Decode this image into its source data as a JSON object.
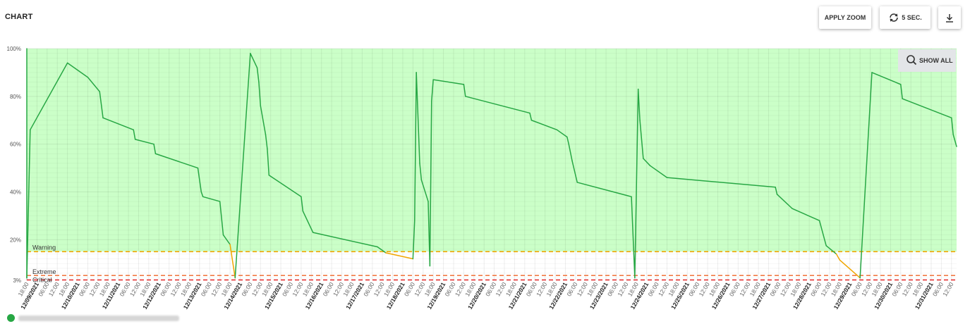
{
  "header": {
    "title": "CHART",
    "apply_zoom_label": "APPLY ZOOM",
    "refresh_label": "5 SEC.",
    "refresh_icon": "refresh-icon",
    "download_icon": "download-icon"
  },
  "show_all_label": "SHOW ALL",
  "legend": {
    "label": "",
    "color": "#27a744"
  },
  "colors": {
    "line_ok": "#27a744",
    "line_warning": "#f0a500",
    "fill": "#cbffc8",
    "warning": "#f0a500",
    "extreme": "#f07a45",
    "critical": "#e02424"
  },
  "chart_data": {
    "type": "line",
    "y_unit": "%",
    "ylim": [
      3,
      100
    ],
    "yticks": [
      "3%",
      "20%",
      "40%",
      "60%",
      "80%",
      "100%"
    ],
    "thresholds": [
      {
        "name": "Warning",
        "value": 15
      },
      {
        "name": "Extreme",
        "value": 5
      },
      {
        "name": "Critical",
        "value": 3
      }
    ],
    "x_start": "12/08/2021 18:00",
    "x_end": "12/31/2021 15:00",
    "x_ticks": [
      {
        "t": "12/08/2021 18:00",
        "label": "18:00",
        "bold": false
      },
      {
        "t": "12/09/2021 00:00",
        "label": "12/09/2021",
        "bold": true
      },
      {
        "t": "12/09/2021 06:00",
        "label": "06:00",
        "bold": false
      },
      {
        "t": "12/09/2021 12:00",
        "label": "12:00",
        "bold": false
      },
      {
        "t": "12/09/2021 18:00",
        "label": "18:00",
        "bold": false
      },
      {
        "t": "12/10/2021 00:00",
        "label": "12/10/2021",
        "bold": true
      },
      {
        "t": "12/10/2021 06:00",
        "label": "06:00",
        "bold": false
      },
      {
        "t": "12/10/2021 12:00",
        "label": "12:00",
        "bold": false
      },
      {
        "t": "12/10/2021 18:00",
        "label": "18:00",
        "bold": false
      },
      {
        "t": "12/11/2021 00:00",
        "label": "12/11/2021",
        "bold": true
      },
      {
        "t": "12/11/2021 06:00",
        "label": "06:00",
        "bold": false
      },
      {
        "t": "12/11/2021 12:00",
        "label": "12:00",
        "bold": false
      },
      {
        "t": "12/11/2021 18:00",
        "label": "18:00",
        "bold": false
      },
      {
        "t": "12/12/2021 00:00",
        "label": "12/12/2021",
        "bold": true
      },
      {
        "t": "12/12/2021 06:00",
        "label": "06:00",
        "bold": false
      },
      {
        "t": "12/12/2021 12:00",
        "label": "12:00",
        "bold": false
      },
      {
        "t": "12/12/2021 18:00",
        "label": "18:00",
        "bold": false
      },
      {
        "t": "12/13/2021 00:00",
        "label": "12/13/2021",
        "bold": true
      },
      {
        "t": "12/13/2021 06:00",
        "label": "06:00",
        "bold": false
      },
      {
        "t": "12/13/2021 12:00",
        "label": "12:00",
        "bold": false
      },
      {
        "t": "12/13/2021 18:00",
        "label": "18:00",
        "bold": false
      },
      {
        "t": "12/14/2021 00:00",
        "label": "12/14/2021",
        "bold": true
      },
      {
        "t": "12/14/2021 06:00",
        "label": "06:00",
        "bold": false
      },
      {
        "t": "12/14/2021 12:00",
        "label": "12:00",
        "bold": false
      },
      {
        "t": "12/14/2021 18:00",
        "label": "18:00",
        "bold": false
      },
      {
        "t": "12/15/2021 00:00",
        "label": "12/15/2021",
        "bold": true
      },
      {
        "t": "12/15/2021 06:00",
        "label": "06:00",
        "bold": false
      },
      {
        "t": "12/15/2021 12:00",
        "label": "12:00",
        "bold": false
      },
      {
        "t": "12/15/2021 18:00",
        "label": "18:00",
        "bold": false
      },
      {
        "t": "12/16/2021 00:00",
        "label": "12/16/2021",
        "bold": true
      },
      {
        "t": "12/16/2021 06:00",
        "label": "06:00",
        "bold": false
      },
      {
        "t": "12/16/2021 12:00",
        "label": "12:00",
        "bold": false
      },
      {
        "t": "12/16/2021 18:00",
        "label": "18:00",
        "bold": false
      },
      {
        "t": "12/17/2021 00:00",
        "label": "12/17/2021",
        "bold": true
      },
      {
        "t": "12/17/2021 06:00",
        "label": "06:00",
        "bold": false
      },
      {
        "t": "12/17/2021 12:00",
        "label": "12:00",
        "bold": false
      },
      {
        "t": "12/17/2021 18:00",
        "label": "18:00",
        "bold": false
      },
      {
        "t": "12/18/2021 00:00",
        "label": "12/18/2021",
        "bold": true
      },
      {
        "t": "12/18/2021 06:00",
        "label": "06:00",
        "bold": false
      },
      {
        "t": "12/18/2021 12:00",
        "label": "12:00",
        "bold": false
      },
      {
        "t": "12/18/2021 18:00",
        "label": "18:00",
        "bold": false
      },
      {
        "t": "12/19/2021 00:00",
        "label": "12/19/2021",
        "bold": true
      },
      {
        "t": "12/19/2021 06:00",
        "label": "06:00",
        "bold": false
      },
      {
        "t": "12/19/2021 12:00",
        "label": "12:00",
        "bold": false
      },
      {
        "t": "12/19/2021 18:00",
        "label": "18:00",
        "bold": false
      },
      {
        "t": "12/20/2021 00:00",
        "label": "12/20/2021",
        "bold": true
      },
      {
        "t": "12/20/2021 06:00",
        "label": "06:00",
        "bold": false
      },
      {
        "t": "12/20/2021 12:00",
        "label": "12:00",
        "bold": false
      },
      {
        "t": "12/20/2021 18:00",
        "label": "18:00",
        "bold": false
      },
      {
        "t": "12/21/2021 00:00",
        "label": "12/21/2021",
        "bold": true
      },
      {
        "t": "12/21/2021 06:00",
        "label": "06:00",
        "bold": false
      },
      {
        "t": "12/21/2021 12:00",
        "label": "12:00",
        "bold": false
      },
      {
        "t": "12/21/2021 18:00",
        "label": "18:00",
        "bold": false
      },
      {
        "t": "12/22/2021 00:00",
        "label": "12/22/2021",
        "bold": true
      },
      {
        "t": "12/22/2021 06:00",
        "label": "06:00",
        "bold": false
      },
      {
        "t": "12/22/2021 12:00",
        "label": "12:00",
        "bold": false
      },
      {
        "t": "12/22/2021 18:00",
        "label": "18:00",
        "bold": false
      },
      {
        "t": "12/23/2021 00:00",
        "label": "12/23/2021",
        "bold": true
      },
      {
        "t": "12/23/2021 06:00",
        "label": "06:00",
        "bold": false
      },
      {
        "t": "12/23/2021 12:00",
        "label": "12:00",
        "bold": false
      },
      {
        "t": "12/23/2021 18:00",
        "label": "18:00",
        "bold": false
      },
      {
        "t": "12/24/2021 00:00",
        "label": "12/24/2021",
        "bold": true
      },
      {
        "t": "12/24/2021 06:00",
        "label": "06:00",
        "bold": false
      },
      {
        "t": "12/24/2021 12:00",
        "label": "12:00",
        "bold": false
      },
      {
        "t": "12/24/2021 18:00",
        "label": "18:00",
        "bold": false
      },
      {
        "t": "12/25/2021 00:00",
        "label": "12/25/2021",
        "bold": true
      },
      {
        "t": "12/25/2021 06:00",
        "label": "06:00",
        "bold": false
      },
      {
        "t": "12/25/2021 12:00",
        "label": "12:00",
        "bold": false
      },
      {
        "t": "12/25/2021 18:00",
        "label": "18:00",
        "bold": false
      },
      {
        "t": "12/26/2021 00:00",
        "label": "12/26/2021",
        "bold": true
      },
      {
        "t": "12/26/2021 06:00",
        "label": "06:00",
        "bold": false
      },
      {
        "t": "12/26/2021 12:00",
        "label": "12:00",
        "bold": false
      },
      {
        "t": "12/26/2021 18:00",
        "label": "18:00",
        "bold": false
      },
      {
        "t": "12/27/2021 00:00",
        "label": "12/27/2021",
        "bold": true
      },
      {
        "t": "12/27/2021 06:00",
        "label": "06:00",
        "bold": false
      },
      {
        "t": "12/27/2021 12:00",
        "label": "12:00",
        "bold": false
      },
      {
        "t": "12/27/2021 18:00",
        "label": "18:00",
        "bold": false
      },
      {
        "t": "12/28/2021 00:00",
        "label": "12/28/2021",
        "bold": true
      },
      {
        "t": "12/28/2021 06:00",
        "label": "06:00",
        "bold": false
      },
      {
        "t": "12/28/2021 12:00",
        "label": "12:00",
        "bold": false
      },
      {
        "t": "12/28/2021 18:00",
        "label": "18:00",
        "bold": false
      },
      {
        "t": "12/29/2021 00:00",
        "label": "12/29/2021",
        "bold": true
      },
      {
        "t": "12/29/2021 06:00",
        "label": "06:00",
        "bold": false
      },
      {
        "t": "12/29/2021 12:00",
        "label": "12:00",
        "bold": false
      },
      {
        "t": "12/29/2021 18:00",
        "label": "18:00",
        "bold": false
      },
      {
        "t": "12/30/2021 00:00",
        "label": "12/30/2021",
        "bold": true
      },
      {
        "t": "12/30/2021 06:00",
        "label": "06:00",
        "bold": false
      },
      {
        "t": "12/30/2021 12:00",
        "label": "12:00",
        "bold": false
      },
      {
        "t": "12/30/2021 18:00",
        "label": "18:00",
        "bold": false
      },
      {
        "t": "12/31/2021 00:00",
        "label": "12/31/2021",
        "bold": true
      },
      {
        "t": "12/31/2021 06:00",
        "label": "06:00",
        "bold": false
      },
      {
        "t": "12/31/2021 12:00",
        "label": "12:00",
        "bold": false
      }
    ],
    "series": [
      {
        "points": [
          [
            "12/08/2021 18:00",
            100
          ],
          [
            "12/08/2021 18:00",
            4
          ],
          [
            "12/08/2021 20:00",
            66
          ],
          [
            "12/09/2021 18:00",
            94
          ],
          [
            "12/10/2021 06:00",
            88
          ],
          [
            "12/10/2021 13:00",
            82
          ],
          [
            "12/10/2021 15:00",
            71
          ],
          [
            "12/11/2021 09:00",
            66
          ],
          [
            "12/11/2021 10:00",
            62
          ],
          [
            "12/11/2021 21:00",
            60
          ],
          [
            "12/11/2021 22:00",
            56
          ],
          [
            "12/12/2021 23:00",
            50
          ],
          [
            "12/13/2021 01:00",
            40
          ],
          [
            "12/13/2021 02:00",
            38
          ],
          [
            "12/13/2021 12:00",
            36
          ],
          [
            "12/13/2021 14:00",
            22
          ],
          [
            "12/13/2021 18:00",
            18
          ],
          [
            "12/13/2021 21:00",
            4
          ],
          [
            "12/14/2021 06:00",
            98
          ],
          [
            "12/14/2021 10:00",
            92
          ],
          [
            "12/14/2021 11:00",
            86
          ],
          [
            "12/14/2021 12:00",
            76
          ],
          [
            "12/14/2021 15:00",
            64
          ],
          [
            "12/14/2021 16:00",
            58
          ],
          [
            "12/14/2021 17:00",
            47
          ],
          [
            "12/15/2021 12:00",
            38
          ],
          [
            "12/15/2021 13:00",
            32
          ],
          [
            "12/15/2021 19:00",
            23
          ],
          [
            "12/17/2021 09:00",
            17
          ],
          [
            "12/17/2021 14:00",
            14.5
          ],
          [
            "12/18/2021 06:00",
            12
          ],
          [
            "12/18/2021 07:00",
            28
          ],
          [
            "12/18/2021 08:00",
            90
          ],
          [
            "12/18/2021 10:00",
            52
          ],
          [
            "12/18/2021 11:00",
            45
          ],
          [
            "12/18/2021 15:00",
            36
          ],
          [
            "12/18/2021 16:00",
            9
          ],
          [
            "12/18/2021 17:00",
            78
          ],
          [
            "12/18/2021 18:00",
            87
          ],
          [
            "12/19/2021 12:00",
            85
          ],
          [
            "12/19/2021 13:00",
            80
          ],
          [
            "12/21/2021 03:00",
            73
          ],
          [
            "12/21/2021 04:00",
            70
          ],
          [
            "12/21/2021 19:00",
            66
          ],
          [
            "12/22/2021 01:00",
            63
          ],
          [
            "12/22/2021 02:00",
            60
          ],
          [
            "12/22/2021 04:00",
            53
          ],
          [
            "12/22/2021 06:00",
            47
          ],
          [
            "12/22/2021 07:00",
            44
          ],
          [
            "12/23/2021 15:00",
            38
          ],
          [
            "12/23/2021 17:00",
            4
          ],
          [
            "12/23/2021 19:00",
            83
          ],
          [
            "12/23/2021 20:00",
            70
          ],
          [
            "12/23/2021 22:00",
            54
          ],
          [
            "12/24/2021 02:00",
            51
          ],
          [
            "12/24/2021 12:00",
            46
          ],
          [
            "12/27/2021 04:00",
            42
          ],
          [
            "12/27/2021 05:00",
            39
          ],
          [
            "12/27/2021 14:00",
            33
          ],
          [
            "12/28/2021 06:00",
            28
          ],
          [
            "12/28/2021 10:00",
            17.5
          ],
          [
            "12/28/2021 16:00",
            14
          ],
          [
            "12/28/2021 18:00",
            11.5
          ],
          [
            "12/29/2021 06:00",
            4
          ],
          [
            "12/29/2021 13:00",
            90
          ],
          [
            "12/30/2021 06:00",
            85
          ],
          [
            "12/30/2021 07:00",
            79
          ],
          [
            "12/31/2021 12:00",
            71
          ],
          [
            "12/31/2021 13:00",
            64
          ],
          [
            "12/31/2021 15:00",
            59
          ]
        ]
      }
    ]
  }
}
